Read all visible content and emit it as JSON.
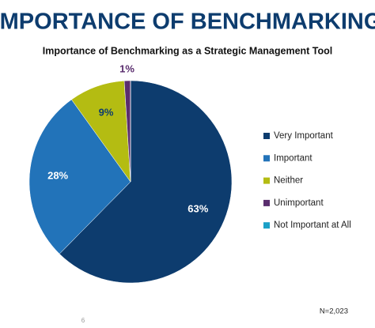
{
  "header": "IMPORTANCE OF BENCHMARKING",
  "chart_data": {
    "type": "pie",
    "title": "Importance of Benchmarking as a Strategic Management Tool",
    "categories": [
      "Very Important",
      "Important",
      "Neither",
      "Unimportant",
      "Not Important at All"
    ],
    "values": [
      63,
      28,
      9,
      1,
      0
    ],
    "value_labels": [
      "63%",
      "28%",
      "9%",
      "1%",
      null
    ],
    "colors": [
      "#0d3c6e",
      "#2273b9",
      "#b4bc12",
      "#5a2d6e",
      "#1ba0c7"
    ],
    "legend": "right"
  },
  "footnote": "N=2,023",
  "page_number": "6"
}
